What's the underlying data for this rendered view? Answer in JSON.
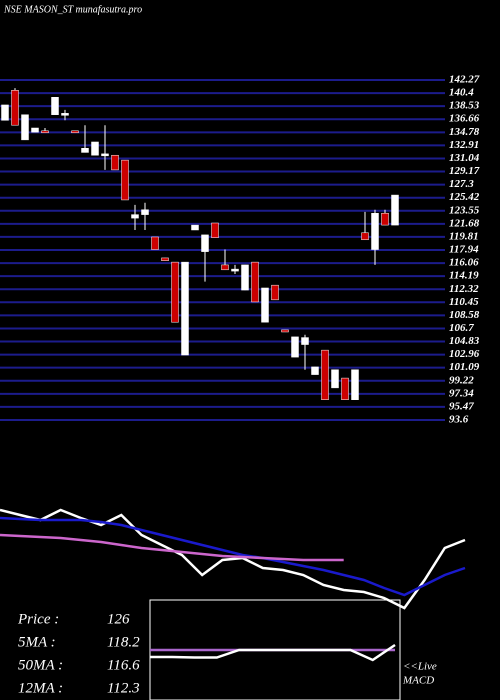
{
  "chart_data": [
    {
      "type": "candlestick",
      "title": "NSE MASON_ST munafasutra.pro",
      "up_color": "#ffffff",
      "down_color": "#cc0000",
      "grid_color": "#1c1c8c",
      "ylim": [
        93.6,
        142.27
      ],
      "yticks": [
        142.27,
        140.4,
        138.53,
        136.66,
        134.78,
        132.91,
        131.04,
        129.17,
        127.3,
        125.42,
        123.55,
        121.68,
        119.81,
        117.94,
        116.06,
        114.19,
        112.32,
        110.45,
        108.58,
        106.7,
        104.83,
        102.96,
        101.09,
        99.22,
        97.34,
        95.47,
        93.6
      ],
      "candles": [
        [
          136.5,
          138.7,
          136.5,
          138.7
        ],
        [
          140.8,
          141.1,
          135.8,
          135.8
        ],
        [
          133.7,
          137.3,
          133.7,
          137.3
        ],
        [
          134.8,
          135.4,
          134.8,
          135.4
        ],
        [
          135.0,
          135.4,
          134.8,
          134.8
        ],
        [
          137.3,
          139.8,
          137.3,
          139.8
        ],
        [
          137.3,
          138.0,
          136.5,
          137.5
        ],
        [
          135.0,
          135.0,
          134.8,
          134.8
        ],
        [
          131.9,
          135.8,
          131.9,
          132.5
        ],
        [
          131.5,
          133.4,
          131.5,
          133.4
        ],
        [
          131.5,
          135.8,
          129.4,
          131.7
        ],
        [
          131.5,
          131.5,
          129.4,
          129.4
        ],
        [
          130.8,
          130.8,
          125.1,
          125.1
        ],
        [
          122.5,
          124.4,
          120.8,
          123.0
        ],
        [
          123.0,
          124.7,
          120.8,
          123.7
        ],
        [
          119.8,
          119.8,
          118.0,
          118.0
        ],
        [
          116.8,
          116.8,
          116.4,
          116.4
        ],
        [
          116.2,
          116.2,
          107.6,
          107.6
        ],
        [
          102.9,
          116.2,
          102.9,
          116.2
        ],
        [
          120.8,
          121.5,
          120.8,
          121.5
        ],
        [
          117.7,
          120.1,
          113.4,
          120.1
        ],
        [
          121.8,
          121.8,
          119.7,
          119.7
        ],
        [
          115.8,
          118.0,
          115.1,
          115.1
        ],
        [
          115.0,
          115.8,
          114.5,
          115.2
        ],
        [
          112.2,
          115.8,
          112.2,
          115.8
        ],
        [
          116.2,
          116.2,
          110.5,
          110.5
        ],
        [
          107.6,
          112.5,
          107.6,
          112.5
        ],
        [
          112.9,
          112.9,
          110.8,
          110.8
        ],
        [
          106.5,
          106.5,
          106.2,
          106.2
        ],
        [
          102.6,
          105.5,
          102.6,
          105.5
        ],
        [
          104.4,
          105.8,
          100.8,
          105.4
        ],
        [
          100.1,
          101.2,
          100.1,
          101.2
        ],
        [
          103.6,
          103.6,
          96.5,
          96.5
        ],
        [
          98.2,
          100.8,
          98.2,
          100.8
        ],
        [
          99.6,
          99.6,
          96.5,
          96.5
        ],
        [
          96.5,
          100.8,
          96.5,
          100.8
        ],
        [
          120.4,
          123.4,
          119.4,
          119.4
        ],
        [
          118.0,
          123.7,
          115.8,
          123.2
        ],
        [
          123.2,
          123.7,
          121.5,
          121.5
        ],
        [
          121.5,
          125.8,
          121.5,
          125.8
        ]
      ]
    },
    {
      "type": "line",
      "ylim": [
        0,
        130
      ],
      "series": [
        {
          "color": "#ffffff",
          "values": [
            110,
            105,
            100,
            110,
            102,
            95,
            105,
            85,
            75,
            65,
            45,
            60,
            62,
            52,
            50,
            45,
            35,
            30,
            28,
            22,
            12,
            40,
            72,
            80
          ]
        },
        {
          "color": "#1a1acc",
          "values": [
            102,
            101,
            100,
            100,
            100,
            98,
            95,
            90,
            85,
            80,
            75,
            70,
            65,
            62,
            58,
            54,
            50,
            45,
            40,
            32,
            25,
            35,
            45,
            52
          ]
        },
        {
          "color": "#cc66cc",
          "values": [
            85,
            84,
            83,
            82,
            80,
            78,
            75,
            72,
            70,
            68,
            66,
            64,
            63,
            62,
            61,
            60,
            60,
            60,
            null,
            null,
            null,
            null,
            null,
            null
          ]
        }
      ]
    },
    {
      "type": "line",
      "ylim": [
        -10,
        10
      ],
      "series": [
        {
          "color": "#aa66cc",
          "values": [
            0,
            0,
            0,
            0,
            0,
            0,
            0,
            0,
            0,
            0,
            0,
            0
          ]
        },
        {
          "color": "#ffffff",
          "values": [
            -1.4,
            -1.4,
            -1.5,
            -1.5,
            0,
            0,
            0,
            0,
            0,
            0,
            -2,
            1
          ]
        }
      ]
    }
  ],
  "stats": [
    {
      "label": "Price   :",
      "value": 126
    },
    {
      "label": "5MA :",
      "value": 118.2
    },
    {
      "label": "50MA :",
      "value": 116.6
    },
    {
      "label": "12MA :",
      "value": 112.3
    }
  ],
  "live": "<<Live",
  "macd": "MACD"
}
